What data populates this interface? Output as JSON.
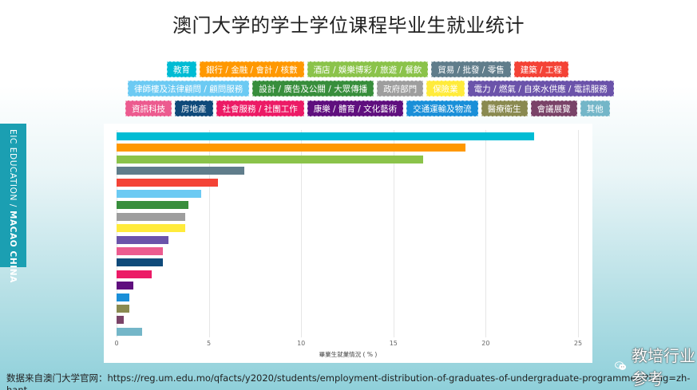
{
  "title": "澳门大学的学士学位课程毕业生就业统计",
  "sidebar": {
    "brand": "EIC EDUCATION",
    "separator": " / ",
    "region": "MACAO CHINA"
  },
  "legend": {
    "rows": [
      [
        {
          "label": "教育",
          "color": "#00bcd4"
        },
        {
          "label": "銀行 / 金融 / 會計 / 核數",
          "color": "#ff9800"
        },
        {
          "label": "酒店 / 娛樂博彩 / 旅遊 / 餐飲",
          "color": "#8bc34a"
        },
        {
          "label": "貿易 / 批發 / 零售",
          "color": "#607d8b"
        },
        {
          "label": "建築 / 工程",
          "color": "#f44336"
        }
      ],
      [
        {
          "label": "律師樓及法律顧問 / 顧問服務",
          "color": "#6ccaf3"
        },
        {
          "label": "設計 / 廣告及公關 / 大眾傳播",
          "color": "#388e3c"
        },
        {
          "label": "政府部門",
          "color": "#9e9e9e"
        },
        {
          "label": "保險業",
          "color": "#ffeb3b"
        },
        {
          "label": "電力 / 燃氣 / 自來水供應 / 電訊服務",
          "color": "#6b53aa"
        }
      ],
      [
        {
          "label": "資訊科技",
          "color": "#ec5b8f"
        },
        {
          "label": "房地產",
          "color": "#0f4a7a"
        },
        {
          "label": "社會服務 / 社團工作",
          "color": "#ec1b66"
        },
        {
          "label": "康樂 / 體育 / 文化藝術",
          "color": "#5f0f7e"
        },
        {
          "label": "交通運輸及物流",
          "color": "#1a8fd8"
        },
        {
          "label": "醫療衛生",
          "color": "#8a8a50"
        },
        {
          "label": "會議展覽",
          "color": "#7a4368"
        },
        {
          "label": "其他",
          "color": "#74b6c8"
        }
      ]
    ]
  },
  "chart_data": {
    "type": "bar",
    "orientation": "horizontal",
    "title": "澳门大学的学士学位课程毕业生就业统计",
    "xlabel": "畢業生就業情況 ( % )",
    "ylabel": "",
    "xlim": [
      0,
      25
    ],
    "xticks": [
      0,
      5,
      10,
      15,
      20,
      25
    ],
    "grid": true,
    "legend_position": "top",
    "categories": [
      "教育",
      "銀行 / 金融 / 會計 / 核數",
      "酒店 / 娛樂博彩 / 旅遊 / 餐飲",
      "貿易 / 批發 / 零售",
      "建築 / 工程",
      "律師樓及法律顧問 / 顧問服務",
      "設計 / 廣告及公關 / 大眾傳播",
      "政府部門",
      "保險業",
      "電力 / 燃氣 / 自來水供應 / 電訊服務",
      "資訊科技",
      "房地產",
      "社會服務 / 社團工作",
      "康樂 / 體育 / 文化藝術",
      "交通運輸及物流",
      "醫療衛生",
      "會議展覽",
      "其他"
    ],
    "values": [
      22.6,
      18.9,
      16.6,
      6.9,
      5.5,
      4.6,
      3.9,
      3.7,
      3.7,
      2.8,
      2.5,
      2.5,
      1.9,
      0.9,
      0.7,
      0.7,
      0.4,
      1.4
    ],
    "colors": [
      "#00bcd4",
      "#ff9800",
      "#8bc34a",
      "#607d8b",
      "#f44336",
      "#6ccaf3",
      "#388e3c",
      "#9e9e9e",
      "#ffeb3b",
      "#6b53aa",
      "#ec5b8f",
      "#0f4a7a",
      "#ec1b66",
      "#5f0f7e",
      "#1a8fd8",
      "#8a8a50",
      "#7a4368",
      "#74b6c8"
    ]
  },
  "source_note": "数据来自澳门大学官网：https://reg.um.edu.mo/qfacts/y2020/students/employment-distribution-of-graduates-of-undergraduate-programmes/?lang=zh-hant",
  "watermark": {
    "account_name": "教培行业参考",
    "icon": "wechat-icon"
  }
}
